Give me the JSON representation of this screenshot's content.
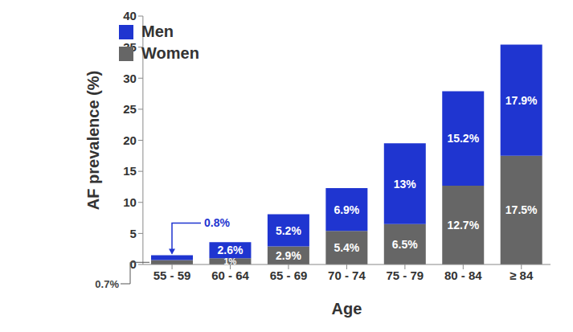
{
  "chart_data": {
    "type": "bar",
    "stacked": true,
    "data_labels": true,
    "grid": false,
    "legend": "top-left",
    "x_label": "Age",
    "y_label": "AF prevalence (%)",
    "categories": [
      "55 - 59",
      "60 - 64",
      "65 - 69",
      "70 - 74",
      "75 - 79",
      "80 - 84",
      "≥ 84"
    ],
    "series": [
      {
        "name": "Women",
        "color": "#666666",
        "values": [
          0.7,
          1,
          2.9,
          5.4,
          6.5,
          12.7,
          17.5
        ],
        "value_labels": [
          "0.7%",
          "1%",
          "2.9%",
          "5.4%",
          "6.5%",
          "12.7%",
          "17.5%"
        ]
      },
      {
        "name": "Men",
        "color": "#1f35d0",
        "values": [
          0.8,
          2.6,
          5.2,
          6.9,
          13,
          15.2,
          17.9
        ],
        "value_labels": [
          "0.8%",
          "2.6%",
          "5.2%",
          "6.9%",
          "13%",
          "15.2%",
          "17.9%"
        ]
      }
    ],
    "ylim": [
      0,
      40
    ],
    "yticks": [
      0,
      5,
      10,
      15,
      20,
      25,
      30,
      35,
      40
    ]
  }
}
